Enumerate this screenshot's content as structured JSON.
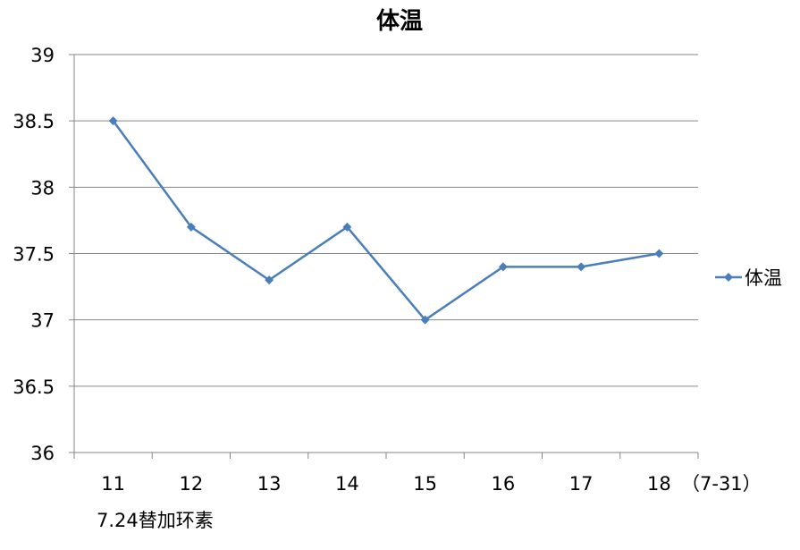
{
  "chart_data": {
    "type": "line",
    "title": "体温",
    "categories": [
      "11",
      "12",
      "13",
      "14",
      "15",
      "16",
      "17",
      "18"
    ],
    "series": [
      {
        "name": "体温",
        "values": [
          38.5,
          37.7,
          37.3,
          37.7,
          37.0,
          37.4,
          37.4,
          37.5
        ]
      }
    ],
    "y_ticks": [
      "36",
      "36.5",
      "37",
      "37.5",
      "38",
      "38.5",
      "39"
    ],
    "ylim": [
      36,
      39
    ],
    "x_suffix": "（7-31）",
    "annotation": "7.24替加环素",
    "grid": true,
    "legend": "right",
    "series_color": "#4a7ebb",
    "grid_color": "#868686"
  }
}
